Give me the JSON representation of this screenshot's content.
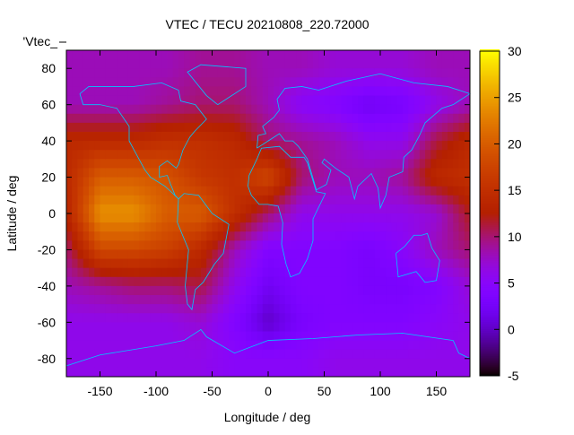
{
  "chart_data": {
    "type": "heatmap",
    "title": "VTEC / TECU 20210808_220.72000",
    "xlabel": "Longitude / deg",
    "ylabel": "Latitude / deg",
    "key_label": "'Vtec_",
    "xlim": [
      -180,
      180
    ],
    "ylim": [
      -90,
      90
    ],
    "clim": [
      -5,
      30
    ],
    "xticks": [
      -150,
      -100,
      -50,
      0,
      50,
      100,
      150
    ],
    "yticks": [
      -80,
      -60,
      -40,
      -20,
      0,
      20,
      40,
      60,
      80
    ],
    "cticks": [
      -5,
      0,
      5,
      10,
      15,
      20,
      25,
      30
    ],
    "grid_lon": [
      -180,
      -150,
      -120,
      -90,
      -60,
      -30,
      0,
      30,
      60,
      90,
      120,
      150,
      180
    ],
    "grid_lat": [
      80,
      60,
      40,
      20,
      0,
      -20,
      -40,
      -60,
      -80
    ],
    "values": [
      [
        8,
        8,
        8,
        8,
        9,
        9,
        8,
        8,
        7,
        7,
        7,
        8,
        8
      ],
      [
        8,
        8,
        8,
        9,
        10,
        10,
        8,
        5,
        4,
        2,
        3,
        6,
        8
      ],
      [
        14,
        14,
        14,
        15,
        15,
        14,
        10,
        9,
        8,
        6,
        6,
        11,
        14
      ],
      [
        14,
        20,
        20,
        19,
        16,
        15,
        18,
        10,
        8,
        8,
        9,
        14,
        15
      ],
      [
        13,
        24,
        24,
        20,
        20,
        15,
        10,
        6,
        6,
        6,
        6,
        7,
        12
      ],
      [
        10,
        18,
        18,
        17,
        14,
        8,
        4,
        4,
        4,
        3,
        5,
        8,
        10
      ],
      [
        8,
        9,
        10,
        10,
        11,
        6,
        2,
        4,
        4,
        3,
        3,
        4,
        7
      ],
      [
        6,
        6,
        6,
        6,
        7,
        4,
        0,
        3,
        4,
        4,
        4,
        5,
        6
      ],
      [
        6,
        6,
        6,
        6,
        6,
        5,
        5,
        5,
        6,
        6,
        6,
        6,
        6
      ]
    ]
  }
}
